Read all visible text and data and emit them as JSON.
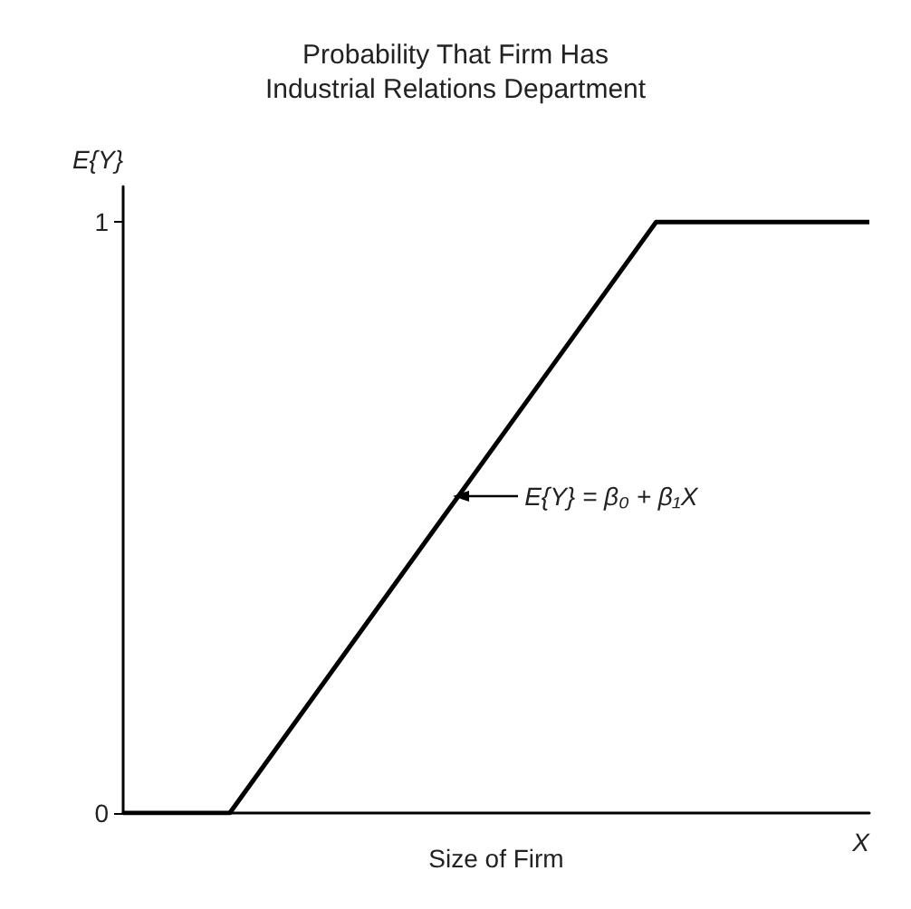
{
  "chart_data": {
    "type": "line",
    "title": "Probability That Firm Has\nIndustrial Relations Department",
    "xlabel": "Size of Firm",
    "ylabel": "E{Y}",
    "categories": [
      null,
      null,
      null,
      null,
      null,
      null,
      null,
      null
    ],
    "series": [
      {
        "color": "#000000",
        "values": [
          0,
          0,
          0.25,
          0.5,
          0.75,
          1,
          1,
          1
        ]
      }
    ],
    "ylim": [
      0,
      1.06
    ],
    "yticks": [
      0,
      1
    ],
    "grid": false,
    "marker": "none",
    "line_style": "solid",
    "annotations": [
      "E{Y} = β₀ + β₁X",
      "X"
    ]
  }
}
